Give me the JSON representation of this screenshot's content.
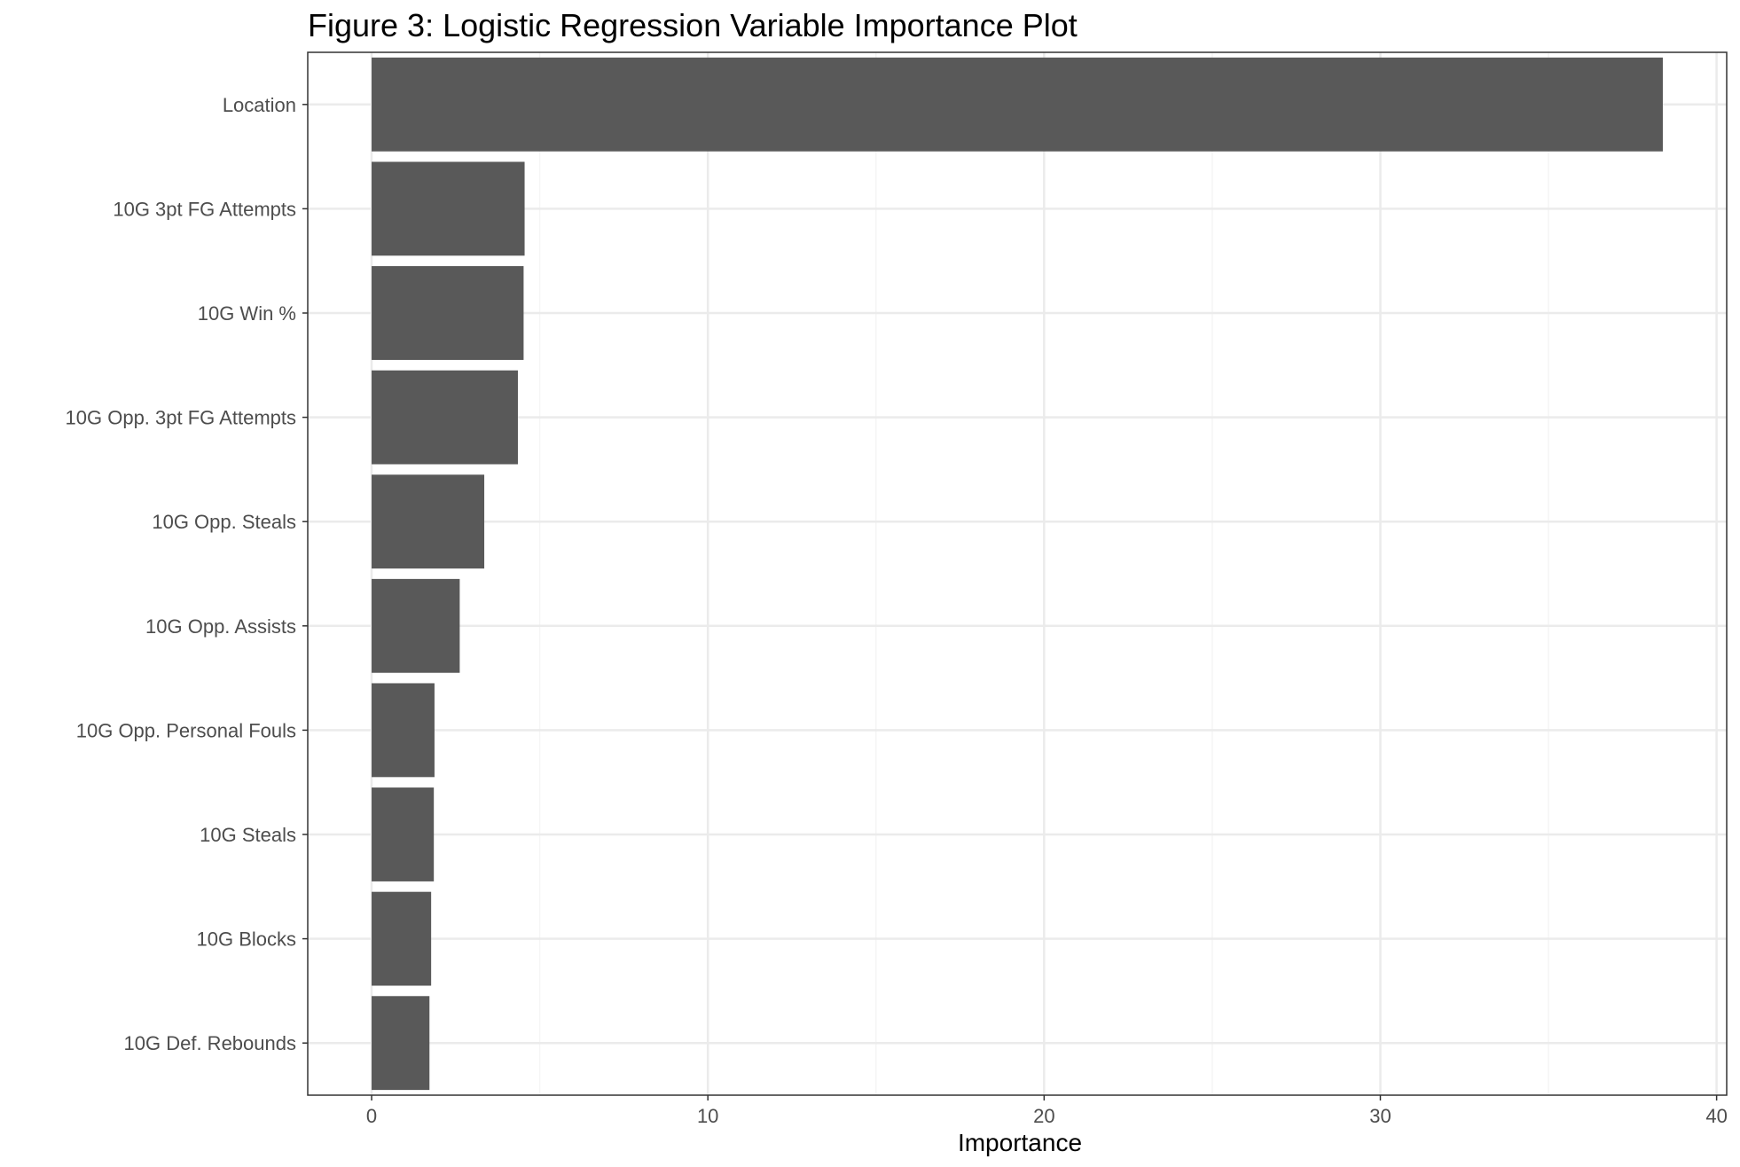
{
  "chart_data": {
    "type": "bar",
    "orientation": "horizontal",
    "title": "Figure 3: Logistic Regression Variable Importance Plot",
    "xlabel": "Importance",
    "ylabel": "",
    "categories": [
      "Location",
      "10G 3pt FG Attempts",
      "10G Win %",
      "10G Opp. 3pt FG Attempts",
      "10G Opp. Steals",
      "10G Opp. Assists",
      "10G Opp. Personal Fouls",
      "10G Steals",
      "10G Blocks",
      "10G Def. Rebounds"
    ],
    "values": [
      38.4,
      4.55,
      4.52,
      4.35,
      3.35,
      2.62,
      1.87,
      1.85,
      1.77,
      1.72
    ],
    "xlim": [
      -1.9,
      40.3
    ],
    "xticks": [
      0,
      10,
      20,
      30,
      40
    ],
    "xtick_labels": [
      "0",
      "10",
      "20",
      "30",
      "40"
    ],
    "grid": true,
    "legend": "none",
    "colors": {
      "bar": "#595959",
      "grid_major": "#ebebeb",
      "grid_minor": "#f5f5f5",
      "panel_border": "#333333",
      "tick_text": "#4d4d4d"
    }
  }
}
